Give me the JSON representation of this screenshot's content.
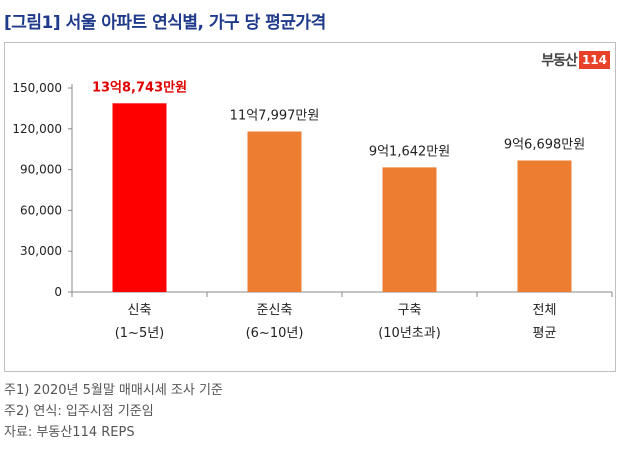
{
  "title": "[그림1] 서울 아파트 연식별, 가구 당 평균가격",
  "logo": {
    "text": "부동산",
    "badge": "114"
  },
  "notes": [
    "주1) 2020년 5월말 매매시세 조사 기준",
    "주2) 연식: 입주시점 기준임",
    "자료: 부동산114 REPS"
  ],
  "colors": {
    "highlight": "#ff0000",
    "bar": "#ed7d31",
    "highlight_label": "#e00000"
  },
  "chart_data": {
    "type": "bar",
    "ylim": [
      0,
      150000
    ],
    "yticks": [
      0,
      30000,
      60000,
      90000,
      120000,
      150000
    ],
    "ytick_labels": [
      "0",
      "30,000",
      "60,000",
      "90,000",
      "120,000",
      "150,000"
    ],
    "grid": false,
    "categories": [
      {
        "line1": "신축",
        "line2": "(1~5년)"
      },
      {
        "line1": "준신축",
        "line2": "(6~10년)"
      },
      {
        "line1": "구축",
        "line2": "(10년초과)"
      },
      {
        "line1": "전체",
        "line2": "평균"
      }
    ],
    "values": [
      138743,
      117997,
      91642,
      96698
    ],
    "data_labels": [
      "13억8,743만원",
      "11억7,997만원",
      "9억1,642만원",
      "9억6,698만원"
    ],
    "highlight_index": 0
  }
}
